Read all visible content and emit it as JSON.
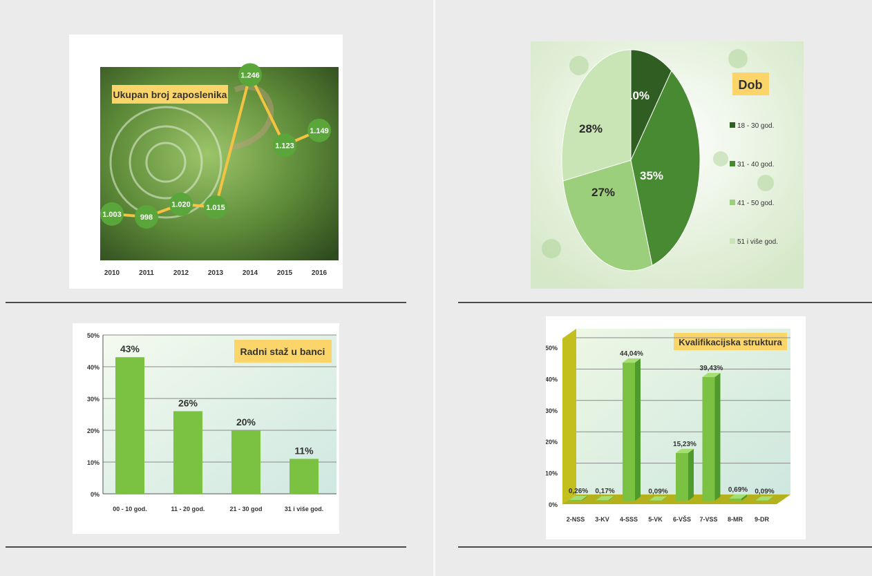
{
  "colors": {
    "page_bg": "#ebebeb",
    "line_accent": "#f5c342",
    "marker_green": "#5aa63a",
    "bar_green": "#7cc242",
    "title_box": "#fcd56a",
    "pie_dark": "#2f5d22",
    "pie_mid": "#478a32",
    "pie_light": "#9ccf7c",
    "pie_pale": "#c9e5b5"
  },
  "chart_data": [
    {
      "type": "line",
      "title": "Ukupan broj zaposlenika",
      "categories": [
        "2010",
        "2011",
        "2012",
        "2013",
        "2014",
        "2015",
        "2016"
      ],
      "values": [
        1003,
        998,
        1020,
        1015,
        1246,
        1123,
        1149
      ],
      "data_labels": [
        "1.003",
        "998",
        "1.020",
        "1.015",
        "1.246",
        "1.123",
        "1.149"
      ],
      "ylim": [
        975,
        1255
      ],
      "grid": false
    },
    {
      "type": "pie",
      "title": "Dob",
      "legend_position": "right",
      "slices": [
        {
          "label": "18 - 30 god.",
          "value": 10,
          "display": "10%"
        },
        {
          "label": "31 - 40 god.",
          "value": 35,
          "display": "35%"
        },
        {
          "label": "41 - 50 god.",
          "value": 27,
          "display": "27%"
        },
        {
          "label": "51 i više god.",
          "value": 28,
          "display": "28%"
        }
      ]
    },
    {
      "type": "bar",
      "title": "Radni staž u banci",
      "categories": [
        "00 - 10 god.",
        "11 - 20 god.",
        "21 - 30 god",
        "31 i više god."
      ],
      "values": [
        43,
        26,
        20,
        11
      ],
      "data_labels": [
        "43%",
        "26%",
        "20%",
        "11%"
      ],
      "yticks": [
        "0%",
        "10%",
        "20%",
        "30%",
        "40%",
        "50%"
      ],
      "ylim": [
        0,
        50
      ],
      "grid": true
    },
    {
      "type": "bar",
      "title": "Kvalifikacijska struktura",
      "categories": [
        "2-NSS",
        "3-KV",
        "4-SSS",
        "5-VK",
        "6-VŠS",
        "7-VSS",
        "8-MR",
        "9-DR"
      ],
      "values": [
        0.26,
        0.17,
        44.04,
        0.09,
        15.23,
        39.43,
        0.69,
        0.09
      ],
      "data_labels": [
        "0,26%",
        "0,17%",
        "44,04%",
        "0,09%",
        "15,23%",
        "39,43%",
        "0,69%",
        "0,09%"
      ],
      "yticks": [
        "0%",
        "10%",
        "20%",
        "30%",
        "40%",
        "50%"
      ],
      "ylim": [
        0,
        50
      ],
      "grid": true
    }
  ]
}
